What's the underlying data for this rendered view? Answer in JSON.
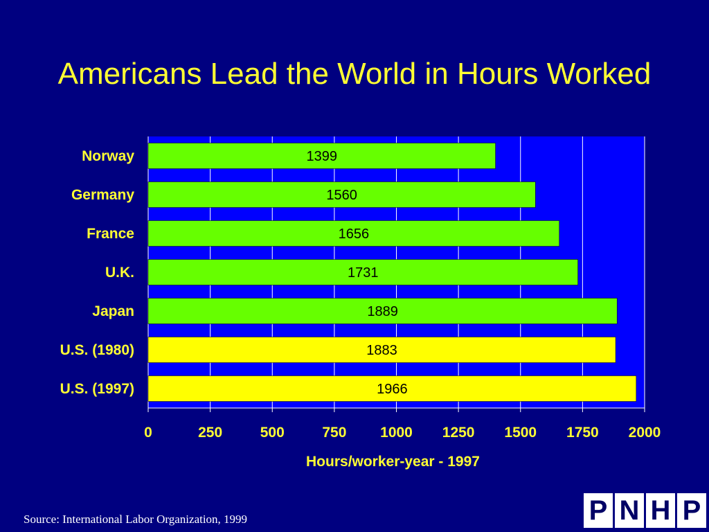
{
  "slide": {
    "title": "Americans Lead the World in Hours Worked",
    "source": "Source: International Labor Organization, 1999",
    "logo_letters": [
      "P",
      "N",
      "H",
      "P"
    ]
  },
  "colors": {
    "background": "#000080",
    "plot_area": "#0000ff",
    "title": "#ffff33",
    "label": "#ffff33",
    "bar_other": "#66ff00",
    "bar_us": "#ffff00",
    "gridline": "#ffffff",
    "value_text": "#000000"
  },
  "chart_data": {
    "type": "bar",
    "orientation": "horizontal",
    "categories": [
      "Norway",
      "Germany",
      "France",
      "U.K.",
      "Japan",
      "U.S. (1980)",
      "U.S. (1997)"
    ],
    "values": [
      1399,
      1560,
      1656,
      1731,
      1889,
      1883,
      1966
    ],
    "data_labels": [
      "1399",
      "1560",
      "1656",
      "1731",
      "1889",
      "1883",
      "1966"
    ],
    "highlight": [
      false,
      false,
      false,
      false,
      false,
      true,
      true
    ],
    "xlabel": "Hours/worker-year - 1997",
    "ylabel": "",
    "xlim": [
      0,
      2000
    ],
    "xticks": [
      0,
      250,
      500,
      750,
      1000,
      1250,
      1500,
      1750,
      2000
    ],
    "xtick_labels": [
      "0",
      "250",
      "500",
      "750",
      "1000",
      "1250",
      "1500",
      "1750",
      "2000"
    ],
    "grid": true
  }
}
